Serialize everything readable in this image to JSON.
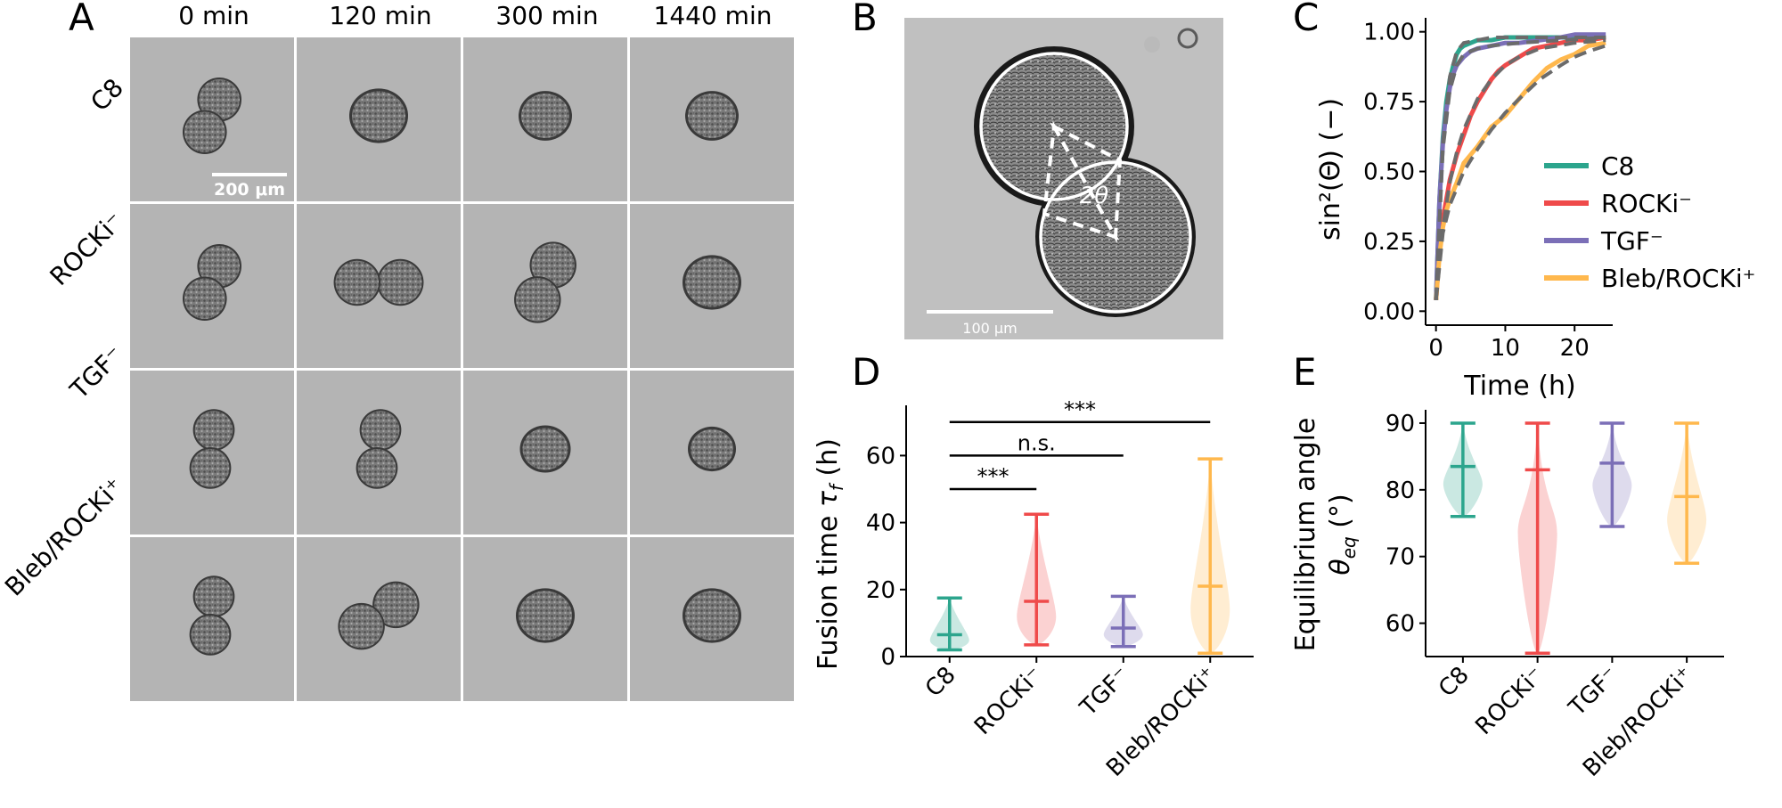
{
  "panels": {
    "A": {
      "letter": "A",
      "time_labels": [
        "0 min",
        "120 min",
        "300 min",
        "1440 min"
      ],
      "row_labels": [
        "C8",
        "ROCKi⁻",
        "TGF⁻",
        "Bleb/ROCKi⁺"
      ],
      "scale_bar": "200 μm",
      "blobs": [
        [
          {
            "n": 2,
            "o": "d",
            "s": 0.8
          },
          {
            "n": 1,
            "s": 1.0
          },
          {
            "n": 1,
            "s": 0.9
          },
          {
            "n": 1,
            "s": 0.9
          }
        ],
        [
          {
            "n": 2,
            "o": "d",
            "s": 0.8
          },
          {
            "n": 2,
            "o": "h",
            "s": 0.85
          },
          {
            "n": 2,
            "o": "d",
            "s": 0.85
          },
          {
            "n": 1,
            "s": 1.0
          }
        ],
        [
          {
            "n": 2,
            "o": "v",
            "s": 0.75
          },
          {
            "n": 2,
            "o": "v",
            "s": 0.75
          },
          {
            "n": 1,
            "s": 0.85
          },
          {
            "n": 1,
            "s": 0.8
          }
        ],
        [
          {
            "n": 2,
            "o": "v",
            "s": 0.75
          },
          {
            "n": 2,
            "o": "d2",
            "s": 0.85
          },
          {
            "n": 1,
            "s": 1.0
          },
          {
            "n": 1,
            "s": 1.0
          }
        ]
      ]
    },
    "B": {
      "letter": "B",
      "scale_bar": "100 μm",
      "angle_label": "2θ"
    },
    "C": {
      "letter": "C",
      "chart_data": {
        "type": "line",
        "xlabel": "Time (h)",
        "ylabel": "sin²(Θ) (−)",
        "xlim": [
          -1.5,
          25.5
        ],
        "ylim": [
          -0.05,
          1.05
        ],
        "xticks": [
          0,
          10,
          20
        ],
        "yticks": [
          0.0,
          0.25,
          0.5,
          0.75,
          1.0
        ],
        "ytick_labels": [
          "0.00",
          "0.25",
          "0.50",
          "0.75",
          "1.00"
        ],
        "legend_position": "lower-right",
        "series": [
          {
            "name": "C8",
            "color": "#2ca58d",
            "x": [
              0,
              0.5,
              1,
              1.5,
              2,
              2.5,
              3,
              3.5,
              4,
              5,
              6,
              8,
              10,
              15,
              20,
              24.5
            ],
            "y": [
              0.04,
              0.4,
              0.62,
              0.75,
              0.83,
              0.88,
              0.92,
              0.94,
              0.95,
              0.96,
              0.97,
              0.97,
              0.98,
              0.98,
              0.98,
              0.98
            ]
          },
          {
            "name": "ROCKi⁻",
            "color": "#ef4a4a",
            "x": [
              0,
              0.5,
              1,
              2,
              3,
              4,
              5,
              6,
              7,
              8,
              9,
              10,
              12,
              14,
              16,
              18,
              20,
              22,
              24.5
            ],
            "y": [
              0.04,
              0.22,
              0.33,
              0.47,
              0.56,
              0.63,
              0.7,
              0.75,
              0.79,
              0.83,
              0.86,
              0.88,
              0.91,
              0.94,
              0.95,
              0.96,
              0.97,
              0.97,
              0.98
            ]
          },
          {
            "name": "TGF⁻",
            "color": "#7b6fb7",
            "x": [
              0,
              0.5,
              1,
              1.5,
              2,
              2.5,
              3,
              4,
              5,
              6,
              8,
              10,
              12,
              15,
              18,
              20,
              22,
              24.5
            ],
            "y": [
              0.04,
              0.4,
              0.6,
              0.72,
              0.8,
              0.85,
              0.88,
              0.91,
              0.93,
              0.94,
              0.95,
              0.96,
              0.96,
              0.97,
              0.98,
              0.99,
              0.99,
              0.99
            ]
          },
          {
            "name": "Bleb/ROCKi⁺",
            "color": "#ffb84d",
            "x": [
              0,
              0.5,
              1,
              1.5,
              2,
              3,
              4,
              5,
              6,
              8,
              10,
              12,
              14,
              16,
              18,
              20,
              22,
              24.5
            ],
            "y": [
              0.04,
              0.2,
              0.3,
              0.36,
              0.4,
              0.46,
              0.53,
              0.56,
              0.59,
              0.66,
              0.7,
              0.76,
              0.82,
              0.87,
              0.9,
              0.92,
              0.95,
              0.96
            ]
          }
        ],
        "fits": [
          {
            "x": [
              0,
              1,
              2,
              3,
              4,
              6,
              8,
              12,
              24.5
            ],
            "y": [
              0.04,
              0.6,
              0.84,
              0.93,
              0.96,
              0.97,
              0.98,
              0.98,
              0.98
            ]
          },
          {
            "x": [
              0,
              1,
              2,
              3,
              4,
              6,
              8,
              10,
              12,
              15,
              20,
              24.5
            ],
            "y": [
              0.04,
              0.3,
              0.46,
              0.57,
              0.65,
              0.76,
              0.83,
              0.88,
              0.91,
              0.94,
              0.96,
              0.97
            ]
          },
          {
            "x": [
              0,
              1,
              2,
              3,
              4,
              6,
              8,
              12,
              24.5
            ],
            "y": [
              0.04,
              0.58,
              0.79,
              0.88,
              0.92,
              0.94,
              0.95,
              0.96,
              0.98
            ]
          },
          {
            "x": [
              0,
              1,
              2,
              4,
              6,
              8,
              10,
              12,
              15,
              18,
              20,
              22,
              24.5
            ],
            "y": [
              0.04,
              0.28,
              0.38,
              0.5,
              0.58,
              0.65,
              0.71,
              0.76,
              0.83,
              0.88,
              0.91,
              0.93,
              0.95
            ]
          }
        ]
      }
    },
    "D": {
      "letter": "D",
      "chart_data": {
        "type": "violin",
        "ylabel": "Fusion time τ_f (h)",
        "ylabel_main": "Fusion time ",
        "ylabel_sym": "τ",
        "ylabel_sub": "f",
        "ylabel_end": " (h)",
        "ylim": [
          0,
          75
        ],
        "yticks": [
          0,
          20,
          40,
          60
        ],
        "categories": [
          "C8",
          "ROCKi⁻",
          "TGF⁻",
          "Bleb/ROCKi⁺"
        ],
        "colors": [
          "#2ca58d",
          "#ef4a4a",
          "#7b6fb7",
          "#ffb84d"
        ],
        "min": [
          2,
          3.5,
          3,
          1
        ],
        "max": [
          17.5,
          42.5,
          18,
          59
        ],
        "median": [
          6.5,
          16.5,
          8.5,
          21
        ],
        "widths": [
          [
            2,
            0.8
          ],
          [
            5,
            1
          ],
          [
            8,
            0.6
          ],
          [
            12,
            0.3
          ],
          [
            17,
            0.1
          ]
        ],
        "significance": [
          {
            "from": 0,
            "to": 1,
            "label": "***",
            "y": 50
          },
          {
            "from": 0,
            "to": 2,
            "label": "n.s.",
            "y": 60
          },
          {
            "from": 0,
            "to": 3,
            "label": "***",
            "y": 70
          }
        ]
      }
    },
    "E": {
      "letter": "E",
      "chart_data": {
        "type": "violin",
        "ylabel_line1": "Equilibrium angle",
        "ylabel_sym": "θ",
        "ylabel_sub": "eq",
        "ylabel_end": " (°)",
        "ylim": [
          55,
          92
        ],
        "yticks": [
          60,
          70,
          80,
          90
        ],
        "categories": [
          "C8",
          "ROCKi⁻",
          "TGF⁻",
          "Bleb/ROCKi⁺"
        ],
        "colors": [
          "#2ca58d",
          "#ef4a4a",
          "#7b6fb7",
          "#ffb84d"
        ],
        "min": [
          76,
          55.5,
          74.5,
          69
        ],
        "max": [
          90,
          90,
          90,
          90
        ],
        "median": [
          83.5,
          83,
          84,
          79
        ]
      }
    }
  }
}
